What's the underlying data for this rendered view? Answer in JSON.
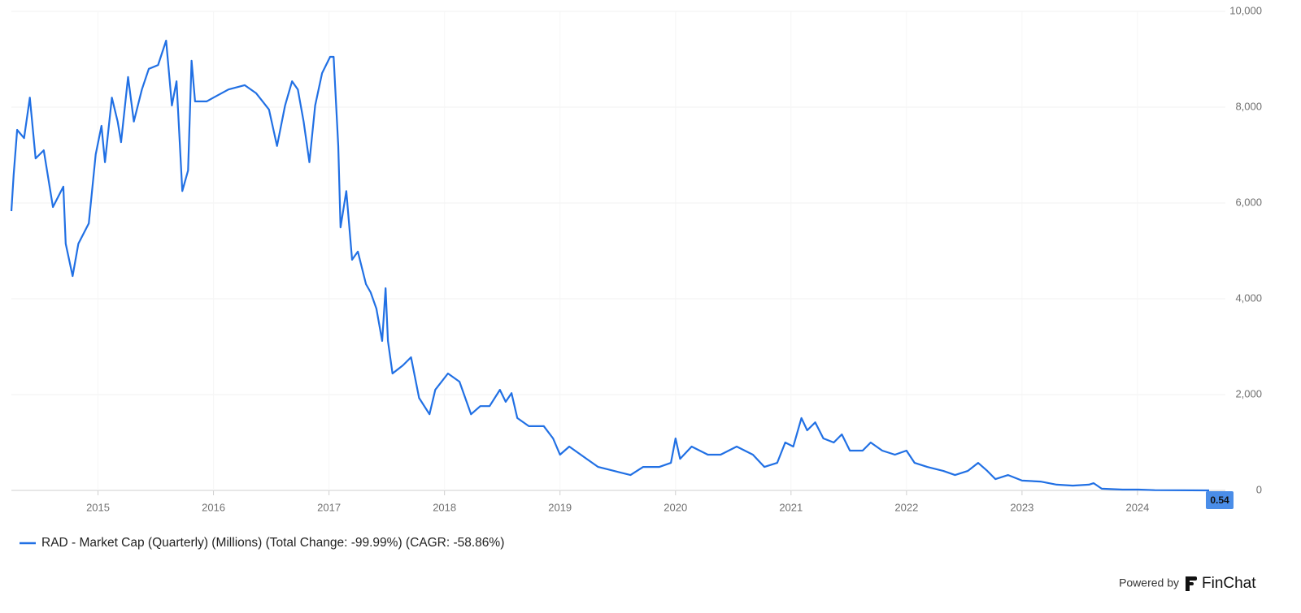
{
  "chart_data": {
    "type": "line",
    "series": [
      {
        "name": "RAD - Market Cap (Quarterly) (Millions) (Total Change: -99.99%) (CAGR: -58.86%)",
        "color": "#2170e4",
        "x": [
          2014.25,
          2014.27,
          2014.3,
          2014.36,
          2014.41,
          2014.46,
          2014.53,
          2014.61,
          2014.7,
          2014.72,
          2014.78,
          2014.83,
          2014.92,
          2014.98,
          2015.03,
          2015.06,
          2015.12,
          2015.17,
          2015.2,
          2015.26,
          2015.31,
          2015.38,
          2015.44,
          2015.52,
          2015.59,
          2015.64,
          2015.68,
          2015.73,
          2015.78,
          2015.81,
          2015.84,
          2015.94,
          2016.0,
          2016.13,
          2016.27,
          2016.37,
          2016.48,
          2016.55,
          2016.62,
          2016.68,
          2016.73,
          2016.78,
          2016.83,
          2016.88,
          2016.94,
          2017.01,
          2017.04,
          2017.08,
          2017.1,
          2017.15,
          2017.2,
          2017.25,
          2017.32,
          2017.36,
          2017.41,
          2017.46,
          2017.49,
          2017.51,
          2017.55,
          2017.64,
          2017.71,
          2017.78,
          2017.87,
          2017.92,
          2018.03,
          2018.13,
          2018.23,
          2018.31,
          2018.39,
          2018.48,
          2018.53,
          2018.58,
          2018.63,
          2018.73,
          2018.86,
          2018.94,
          2019.0,
          2019.08,
          2019.23,
          2019.33,
          2019.47,
          2019.61,
          2019.72,
          2019.86,
          2019.96,
          2020.0,
          2020.04,
          2020.14,
          2020.28,
          2020.39,
          2020.53,
          2020.67,
          2020.77,
          2020.88,
          2020.95,
          2021.02,
          2021.09,
          2021.14,
          2021.21,
          2021.28,
          2021.37,
          2021.44,
          2021.51,
          2021.62,
          2021.69,
          2021.79,
          2021.9,
          2022.0,
          2022.07,
          2022.18,
          2022.32,
          2022.42,
          2022.53,
          2022.62,
          2022.7,
          2022.77,
          2022.88,
          2023.0,
          2023.16,
          2023.3,
          2023.44,
          2023.58,
          2023.62,
          2023.69,
          2023.87,
          2024.01,
          2024.15,
          2024.62
        ],
        "values": [
          5830,
          6590,
          7525,
          7355,
          8200,
          6930,
          7100,
          5915,
          6340,
          5150,
          4475,
          5150,
          5575,
          7015,
          7610,
          6850,
          8200,
          7700,
          7270,
          8630,
          7700,
          8370,
          8800,
          8880,
          9390,
          8035,
          8540,
          6250,
          6680,
          8970,
          8120,
          8120,
          8200,
          8370,
          8460,
          8290,
          7950,
          7190,
          8035,
          8540,
          8370,
          7700,
          6850,
          8035,
          8710,
          9050,
          9050,
          7190,
          5490,
          6250,
          4815,
          4985,
          4305,
          4135,
          3795,
          3120,
          4220,
          3120,
          2440,
          2610,
          2780,
          1930,
          1590,
          2100,
          2440,
          2270,
          1590,
          1760,
          1760,
          2100,
          1850,
          2030,
          1510,
          1340,
          1340,
          1085,
          745,
          915,
          660,
          490,
          405,
          320,
          490,
          490,
          575,
          1085,
          660,
          915,
          745,
          745,
          915,
          745,
          490,
          575,
          1000,
          915,
          1510,
          1255,
          1420,
          1085,
          1000,
          1170,
          830,
          830,
          1000,
          830,
          745,
          830,
          575,
          490,
          405,
          320,
          405,
          575,
          405,
          235,
          320,
          205,
          185,
          120,
          100,
          120,
          150,
          35,
          17,
          17,
          5,
          0.54
        ]
      }
    ],
    "xlim": [
      2014.25,
      2024.62
    ],
    "xticks": [
      2015,
      2016,
      2017,
      2018,
      2019,
      2020,
      2021,
      2022,
      2023,
      2024
    ],
    "ylim": [
      0,
      10000
    ],
    "yticks": [
      0,
      {
        "value": 2000,
        "label": "2,000"
      },
      {
        "value": 4000,
        "label": "4,000"
      },
      {
        "value": 6000,
        "label": "6,000"
      },
      {
        "value": 8000,
        "label": "8,000"
      },
      {
        "value": 10000,
        "label": "10,000"
      }
    ],
    "grid": true
  },
  "footer": {
    "powered_by": "Powered by",
    "brand": "FinChat"
  }
}
